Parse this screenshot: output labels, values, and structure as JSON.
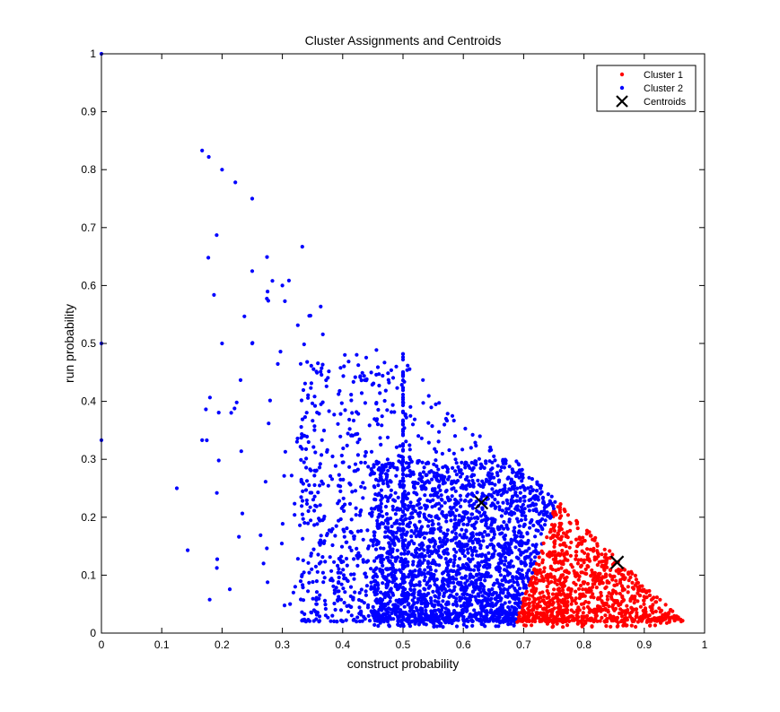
{
  "chart_data": {
    "type": "scatter",
    "title": "Cluster Assignments and Centroids",
    "xlabel": "construct probability",
    "ylabel": "run probability",
    "xlim": [
      0,
      1
    ],
    "ylim": [
      0,
      1
    ],
    "xticks": [
      0,
      0.1,
      0.2,
      0.3,
      0.4,
      0.5,
      0.6,
      0.7,
      0.8,
      0.9,
      1
    ],
    "yticks": [
      0,
      0.1,
      0.2,
      0.3,
      0.4,
      0.5,
      0.6,
      0.7,
      0.8,
      0.9,
      1
    ],
    "tick_labels_x": [
      "0",
      "0.1",
      "0.2",
      "0.3",
      "0.4",
      "0.5",
      "0.6",
      "0.7",
      "0.8",
      "0.9",
      "1"
    ],
    "tick_labels_y": [
      "0",
      "0.1",
      "0.2",
      "0.3",
      "0.4",
      "0.5",
      "0.6",
      "0.7",
      "0.8",
      "0.9",
      "1"
    ],
    "grid": false,
    "legend_position": "top-right",
    "series": [
      {
        "name": "Cluster 1",
        "color": "#ff0000",
        "marker": "dot",
        "x_range": [
          0.67,
          0.98
        ],
        "y_range": [
          0.0,
          0.22
        ],
        "region": "x + y <= 1 and x >= 0.68 + 0.33*y"
      },
      {
        "name": "Cluster 2",
        "color": "#0000ff",
        "marker": "dot",
        "x_range": [
          0.0,
          0.75
        ],
        "y_range": [
          0.0,
          1.0
        ],
        "region": "x + y <= 1 and x < 0.68 + 0.33*y",
        "points": [
          [
            0,
            1
          ],
          [
            0,
            0.5
          ],
          [
            0,
            0.333
          ],
          [
            0.125,
            0.25
          ],
          [
            0.143,
            0.143
          ],
          [
            0.167,
            0.833
          ],
          [
            0.167,
            0.333
          ],
          [
            0.178,
            0.822
          ],
          [
            0.2,
            0.8
          ],
          [
            0.191,
            0.687
          ],
          [
            0.222,
            0.778
          ],
          [
            0.2,
            0.5
          ],
          [
            0.25,
            0.75
          ],
          [
            0.25,
            0.625
          ],
          [
            0.25,
            0.5
          ],
          [
            0.3,
            0.6
          ],
          [
            0.333,
            0.667
          ]
        ]
      },
      {
        "name": "Centroids",
        "color": "#000000",
        "marker": "x",
        "points": [
          [
            0.63,
            0.225
          ],
          [
            0.855,
            0.122
          ]
        ]
      }
    ]
  }
}
